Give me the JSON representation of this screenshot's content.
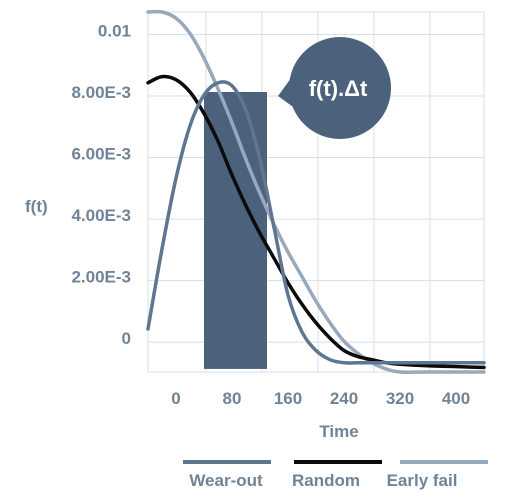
{
  "chart_data": {
    "type": "line",
    "title": "",
    "xlabel": "Time",
    "ylabel": "f(t)",
    "x_ticks": [
      "0",
      "80",
      "160",
      "240",
      "320",
      "400"
    ],
    "x_tick_values": [
      0,
      80,
      160,
      240,
      320,
      400
    ],
    "y_ticks": [
      "0",
      "2.00E-3",
      "4.00E-3",
      "6.00E-3",
      "8.00E-3",
      "0.01"
    ],
    "y_tick_values": [
      0,
      0.002,
      0.004,
      0.006,
      0.008,
      0.01
    ],
    "xlim": [
      -40,
      440
    ],
    "ylim": [
      -0.0011,
      0.0106
    ],
    "grid": true,
    "legend_position": "bottom",
    "series": [
      {
        "name": "Wear-out",
        "color": "#5f7691",
        "x": [
          -40,
          -20,
          0,
          20,
          40,
          60,
          80,
          100,
          120,
          140,
          160,
          180,
          200,
          220,
          240,
          260,
          280,
          300,
          320,
          360,
          440
        ],
        "y": [
          0.0003,
          0.0029,
          0.0052,
          0.0069,
          0.0079,
          0.0083,
          0.0082,
          0.0074,
          0.0058,
          0.0036,
          0.0014,
          0.0002,
          -0.0004,
          -0.0007,
          -0.0008,
          -0.0008,
          -0.0008,
          -0.0008,
          -0.0008,
          -0.0008,
          -0.0008
        ]
      },
      {
        "name": "Random",
        "color": "#0b0b0b",
        "x": [
          -40,
          -20,
          0,
          20,
          40,
          60,
          80,
          100,
          120,
          140,
          160,
          180,
          200,
          220,
          240,
          260,
          280,
          300,
          320,
          360,
          440
        ],
        "y": [
          0.0083,
          0.0085,
          0.0084,
          0.008,
          0.0073,
          0.0064,
          0.0053,
          0.0043,
          0.0034,
          0.0026,
          0.0018,
          0.0011,
          0.0005,
          0.0,
          -0.0004,
          -0.0006,
          -0.0007,
          -0.0008,
          -0.00085,
          -0.0009,
          -0.00095
        ]
      },
      {
        "name": "Early fail",
        "color": "#97a9bd",
        "x": [
          -40,
          -20,
          0,
          20,
          40,
          60,
          80,
          100,
          120,
          140,
          160,
          180,
          200,
          220,
          240,
          260,
          280,
          300,
          320,
          360,
          440
        ],
        "y": [
          0.0106,
          0.0106,
          0.0104,
          0.0099,
          0.0091,
          0.0081,
          0.007,
          0.0058,
          0.0047,
          0.0037,
          0.0028,
          0.002,
          0.0012,
          0.0005,
          -0.0001,
          -0.0005,
          -0.0008,
          -0.001,
          -0.0011,
          -0.0011,
          -0.0011
        ]
      }
    ],
    "highlight_band": {
      "x_start": 40,
      "x_end": 130,
      "y_top": 0.008,
      "y_bottom": -0.001,
      "color": "#4c627c"
    },
    "annotation": {
      "text": "f(t).Δt",
      "color": "#4c627c"
    }
  }
}
